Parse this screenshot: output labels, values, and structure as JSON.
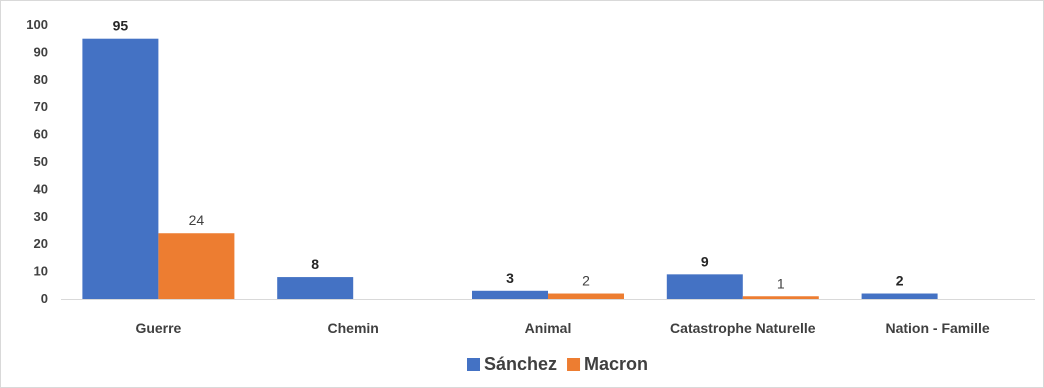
{
  "chart_data": {
    "type": "bar",
    "categories": [
      "Guerre",
      "Chemin",
      "Animal",
      "Catastrophe Naturelle",
      "Nation - Famille"
    ],
    "series": [
      {
        "name": "Sánchez",
        "color": "#4472C4",
        "values": [
          95,
          8,
          3,
          9,
          2
        ],
        "labels": [
          "95",
          "8",
          "3",
          "9",
          "2"
        ],
        "label_style": "bold"
      },
      {
        "name": "Macron",
        "color": "#ED7D31",
        "values": [
          24,
          0,
          2,
          1,
          0
        ],
        "labels": [
          "24",
          "",
          "2",
          "1",
          ""
        ],
        "label_style": "normal"
      }
    ],
    "ylim": [
      0,
      100
    ],
    "yticks": [
      0,
      10,
      20,
      30,
      40,
      50,
      60,
      70,
      80,
      90,
      100
    ],
    "grid": false,
    "legend_position": "bottom"
  }
}
